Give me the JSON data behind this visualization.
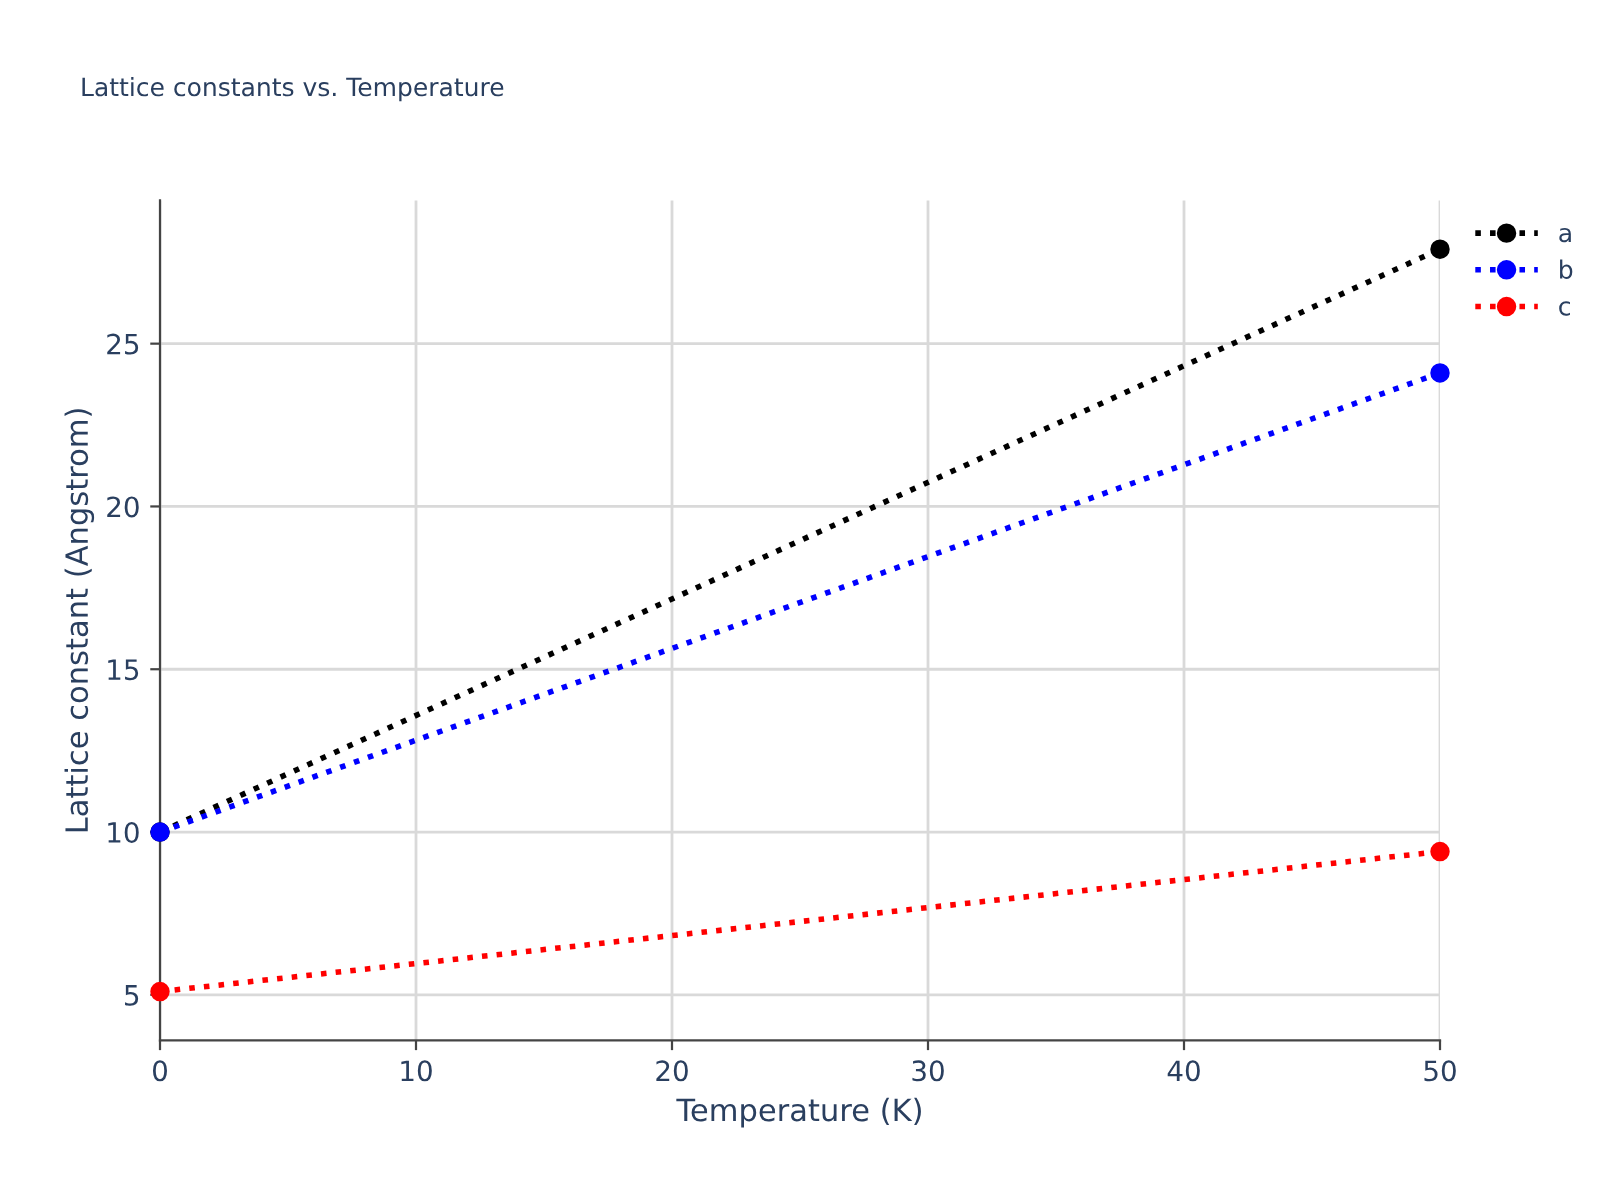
{
  "chart_data": {
    "type": "line",
    "title": "Lattice constants vs. Temperature",
    "xlabel": "Temperature (K)",
    "ylabel": "Lattice constant (Angstrom)",
    "x": [
      0,
      50
    ],
    "series": [
      {
        "name": "a",
        "color": "#000000",
        "values": [
          10.0,
          27.9
        ]
      },
      {
        "name": "b",
        "color": "#0000ff",
        "values": [
          10.0,
          24.1
        ]
      },
      {
        "name": "c",
        "color": "#ff0000",
        "values": [
          5.1,
          9.4
        ]
      }
    ],
    "xlim": [
      0,
      50
    ],
    "xticks": [
      0,
      10,
      20,
      30,
      40,
      50
    ],
    "ylim": [
      3.6,
      29.4
    ],
    "yticks": [
      5,
      10,
      15,
      20,
      25
    ],
    "grid": true,
    "legend": "top right",
    "marker": "circle",
    "line_style": "dotted"
  }
}
